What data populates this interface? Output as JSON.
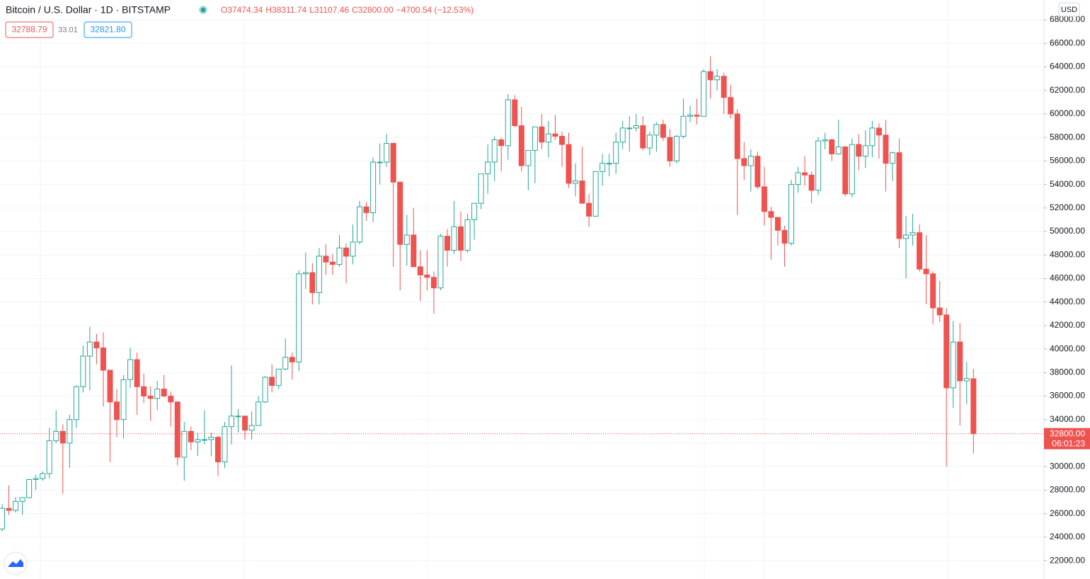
{
  "chart_data": {
    "type": "candlestick",
    "symbol": "Bitcoin / U.S. Dollar · 1D · BITSTAMP",
    "ohlc_legend": [
      "O37474.34",
      "H38311.74",
      "L31107.46",
      "C32800.00",
      "−4700.54 (−12.53%)"
    ],
    "bid": "32788.79",
    "spread": "33.01",
    "ask": "32821.80",
    "currency": "USD",
    "countdown": "06:01:23",
    "last_price": {
      "value": 32800,
      "label": "32800.00"
    },
    "up_color": "#26a69a",
    "down_color": "#ef5350",
    "grid": true,
    "ylim": [
      20440,
      69690
    ],
    "yticks": [
      {
        "value": 22000,
        "label": "22000.00"
      },
      {
        "value": 24000,
        "label": "24000.00"
      },
      {
        "value": 26000,
        "label": "26000.00"
      },
      {
        "value": 28000,
        "label": "28000.00"
      },
      {
        "value": 30000,
        "label": "30000.00"
      },
      {
        "value": 32000,
        "label": "32000.00"
      },
      {
        "value": 34000,
        "label": "34000.00"
      },
      {
        "value": 36000,
        "label": "36000.00"
      },
      {
        "value": 38000,
        "label": "38000.00"
      },
      {
        "value": 40000,
        "label": "40000.00"
      },
      {
        "value": 42000,
        "label": "42000.00"
      },
      {
        "value": 44000,
        "label": "44000.00"
      },
      {
        "value": 46000,
        "label": "46000.00"
      },
      {
        "value": 48000,
        "label": "48000.00"
      },
      {
        "value": 50000,
        "label": "50000.00"
      },
      {
        "value": 52000,
        "label": "52000.00"
      },
      {
        "value": 54000,
        "label": "54000.00"
      },
      {
        "value": 56000,
        "label": "56000.00"
      },
      {
        "value": 58000,
        "label": "58000.00"
      },
      {
        "value": 60000,
        "label": "60000.00"
      },
      {
        "value": 62000,
        "label": "62000.00"
      },
      {
        "value": 64000,
        "label": "64000.00"
      },
      {
        "value": 66000,
        "label": "66000.00"
      },
      {
        "value": 68000,
        "label": "68000.00"
      }
    ],
    "open": [
      24700,
      26450,
      26280,
      27040,
      27360,
      28900,
      28990,
      29400,
      32200,
      33000,
      32000,
      34000,
      36800,
      39400,
      40600,
      40100,
      38200,
      35500,
      34000,
      37400,
      39100,
      36800,
      36000,
      35800,
      36600,
      36000,
      35500,
      30800,
      33000,
      32100,
      32300,
      32300,
      32500,
      30400,
      33400,
      34300,
      34300,
      33100,
      33500,
      35500,
      37600,
      36900,
      38300,
      39300,
      38900,
      46400,
      46500,
      44800,
      47900,
      47400,
      47200,
      48600,
      47900,
      49100,
      52100,
      51600,
      55900,
      55900,
      57500,
      54200,
      48900,
      49700,
      47000,
      46300,
      46100,
      45200,
      49600,
      48400,
      50400,
      48400,
      51000,
      52400,
      54900,
      55900,
      57800,
      57300,
      61200,
      59000,
      55600,
      56900,
      58900,
      57600,
      58300,
      58100,
      57400,
      54100,
      54300,
      52400,
      51300,
      55100,
      55800,
      55800,
      57600,
      58800,
      58800,
      59000,
      57100,
      58200,
      59100,
      58000,
      56000,
      58100,
      59800,
      59900,
      59800,
      63600,
      62900,
      63200,
      61400,
      60000,
      56200,
      55600,
      56400,
      53800,
      51700,
      51200,
      50100,
      49000,
      54000,
      55000,
      54800,
      53500,
      57700,
      57800,
      56600,
      57200,
      53200,
      57400,
      56400,
      57300,
      58800,
      58200,
      55800,
      56700,
      49400,
      49700,
      49900,
      46800,
      46400,
      43500,
      42900,
      36700,
      40600,
      37300,
      37474.34
    ],
    "high": [
      26800,
      28400,
      27400,
      27370,
      28950,
      29300,
      29600,
      33300,
      34800,
      33600,
      34400,
      36900,
      40300,
      41900,
      41300,
      41400,
      38200,
      36600,
      37800,
      40100,
      39700,
      37900,
      36800,
      37300,
      37800,
      36400,
      35500,
      33800,
      33400,
      32900,
      34800,
      32900,
      32600,
      33800,
      38600,
      34900,
      34300,
      34700,
      36000,
      37700,
      38700,
      38300,
      40900,
      39700,
      46700,
      48200,
      47300,
      48600,
      48900,
      48100,
      49700,
      49000,
      50600,
      52600,
      52500,
      56300,
      57500,
      58300,
      57500,
      54200,
      51400,
      52000,
      48400,
      48400,
      46600,
      49800,
      50200,
      52600,
      51700,
      51500,
      52400,
      54900,
      57400,
      58100,
      58000,
      61700,
      61600,
      60600,
      56900,
      58800,
      60000,
      59400,
      59900,
      58500,
      58400,
      55800,
      57200,
      53200,
      55100,
      56600,
      56600,
      58400,
      59400,
      59800,
      60000,
      59800,
      58500,
      59300,
      59500,
      58700,
      58200,
      61300,
      60700,
      61300,
      63800,
      64900,
      63800,
      63500,
      62500,
      60400,
      57600,
      57000,
      56800,
      55500,
      52100,
      51200,
      50500,
      54400,
      55500,
      56400,
      55100,
      58000,
      58400,
      57900,
      59500,
      57200,
      57900,
      58300,
      58600,
      59400,
      59200,
      59500,
      56800,
      57900,
      51300,
      51500,
      50600,
      49700,
      46600,
      45800,
      43500,
      42400,
      42200,
      38900,
      38311.74
    ],
    "low": [
      24500,
      25900,
      26100,
      25900,
      27320,
      28000,
      28800,
      29000,
      32000,
      27700,
      29900,
      33300,
      36300,
      36500,
      38700,
      35100,
      30400,
      32500,
      32400,
      36700,
      34400,
      35400,
      33900,
      34800,
      35900,
      33400,
      30100,
      28800,
      31400,
      30900,
      31900,
      30900,
      29200,
      29900,
      31900,
      32900,
      32300,
      32300,
      33500,
      35400,
      36300,
      36600,
      38200,
      37400,
      38100,
      45100,
      43800,
      43800,
      46300,
      46300,
      47000,
      45600,
      47200,
      48900,
      50900,
      50800,
      54000,
      55500,
      47000,
      45000,
      47100,
      47000,
      44100,
      45000,
      43000,
      45000,
      47000,
      48100,
      47500,
      48200,
      49300,
      51900,
      53200,
      54300,
      55100,
      56100,
      58900,
      55100,
      53500,
      54100,
      57000,
      56300,
      57800,
      55500,
      53700,
      53000,
      52800,
      50400,
      51300,
      53900,
      54700,
      54900,
      57000,
      56800,
      58500,
      56900,
      56500,
      56800,
      57700,
      55500,
      55800,
      57900,
      59300,
      59100,
      59800,
      61300,
      62000,
      60000,
      59600,
      51400,
      54400,
      53400,
      53600,
      50500,
      47600,
      48800,
      47000,
      48800,
      53300,
      53900,
      52400,
      53100,
      57000,
      56000,
      56500,
      53000,
      52900,
      55200,
      55400,
      56300,
      56200,
      53400,
      54300,
      48600,
      46000,
      48800,
      46600,
      43800,
      42100,
      42300,
      30000,
      35000,
      33500,
      35300,
      31107.46
    ],
    "close": [
      26450,
      26280,
      27040,
      27360,
      28900,
      28990,
      29400,
      32200,
      33000,
      32000,
      34000,
      36800,
      39400,
      40600,
      40100,
      38200,
      35500,
      34000,
      37400,
      39100,
      36800,
      36000,
      35800,
      36600,
      36000,
      35500,
      30800,
      33000,
      32100,
      32300,
      32300,
      32500,
      30400,
      33400,
      34300,
      34300,
      33100,
      33500,
      35500,
      37600,
      36900,
      38300,
      39300,
      38900,
      46400,
      46500,
      44800,
      47900,
      47400,
      47200,
      48600,
      47900,
      49100,
      52100,
      51600,
      55900,
      55900,
      57500,
      54200,
      48900,
      49700,
      47000,
      46300,
      46100,
      45200,
      49600,
      48400,
      50400,
      48400,
      51000,
      52400,
      54900,
      55900,
      57800,
      57300,
      61200,
      59000,
      55600,
      56900,
      58900,
      57600,
      58300,
      58100,
      57400,
      54100,
      54300,
      52400,
      51300,
      55100,
      55800,
      55800,
      57600,
      58800,
      58800,
      59000,
      57100,
      58200,
      59100,
      58000,
      56000,
      58100,
      59800,
      59900,
      59800,
      63600,
      62900,
      63200,
      61400,
      60000,
      56200,
      55600,
      56400,
      53800,
      51700,
      51200,
      50100,
      49000,
      54000,
      55000,
      54800,
      53500,
      57700,
      57800,
      56600,
      57200,
      53200,
      57400,
      56400,
      57300,
      58800,
      58200,
      55800,
      56700,
      49400,
      49700,
      49900,
      46800,
      46400,
      43500,
      42900,
      36700,
      40600,
      37300,
      37500,
      32800
    ]
  }
}
